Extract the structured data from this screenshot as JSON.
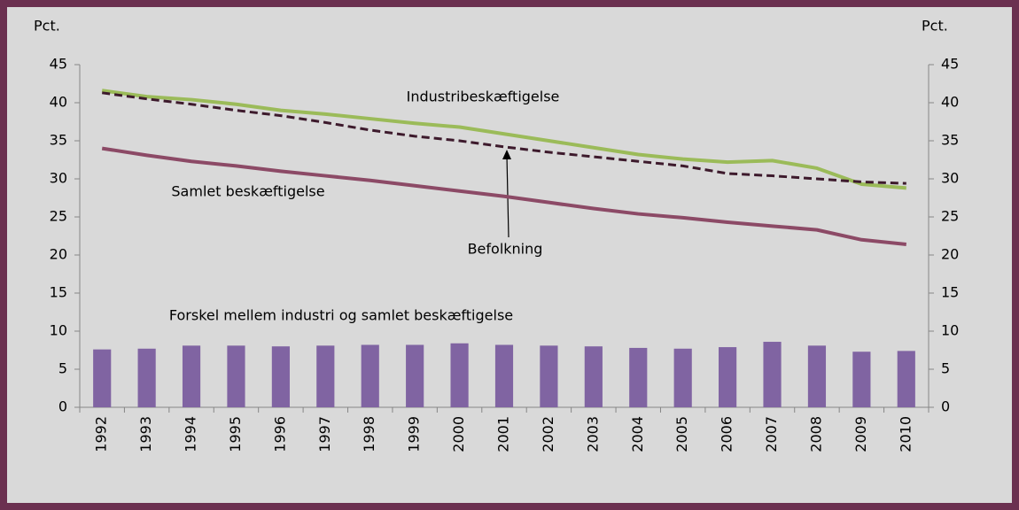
{
  "chart_data": {
    "type": "combo",
    "y_label": "Pct.",
    "y2_label": "Pct.",
    "categories": [
      "1992",
      "1993",
      "1994",
      "1995",
      "1996",
      "1997",
      "1998",
      "1999",
      "2000",
      "2001",
      "2002",
      "2003",
      "2004",
      "2005",
      "2006",
      "2007",
      "2008",
      "2009",
      "2010"
    ],
    "series": [
      {
        "name": "Forskel mellem industri og samlet beskæftigelse",
        "type": "bar",
        "color": "#8064a2",
        "values": [
          7.6,
          7.7,
          8.1,
          8.1,
          8.0,
          8.1,
          8.2,
          8.2,
          8.4,
          8.2,
          8.1,
          8.0,
          7.8,
          7.7,
          7.9,
          8.6,
          8.1,
          7.3,
          7.4
        ]
      },
      {
        "name": "Samlet beskæftigelse",
        "type": "line",
        "color": "#8c4a66",
        "values": [
          34.0,
          33.1,
          32.3,
          31.7,
          31.0,
          30.4,
          29.8,
          29.1,
          28.4,
          27.7,
          26.9,
          26.1,
          25.4,
          24.9,
          24.3,
          23.8,
          23.3,
          22.0,
          21.4
        ]
      },
      {
        "name": "Industribeskæftigelse",
        "type": "line",
        "color": "#9bbb59",
        "values": [
          41.6,
          40.8,
          40.4,
          39.8,
          39.0,
          38.5,
          37.9,
          37.3,
          36.8,
          35.9,
          35.0,
          34.1,
          33.2,
          32.6,
          32.2,
          32.4,
          31.4,
          29.3,
          28.8
        ]
      },
      {
        "name": "Befolkning",
        "type": "line",
        "dash": true,
        "color": "#3d1a2c",
        "values": [
          41.3,
          40.5,
          39.8,
          39.0,
          38.3,
          37.4,
          36.4,
          35.6,
          35.0,
          34.2,
          33.5,
          32.9,
          32.3,
          31.7,
          30.7,
          30.4,
          30.0,
          29.6,
          29.4
        ]
      }
    ],
    "ylim": [
      0,
      45
    ],
    "yticks": [
      0,
      5,
      10,
      15,
      20,
      25,
      30,
      35,
      40,
      45
    ],
    "y2lim": [
      0,
      45
    ],
    "y2ticks": [
      0,
      5,
      10,
      15,
      20,
      25,
      30,
      35,
      40,
      45
    ]
  }
}
